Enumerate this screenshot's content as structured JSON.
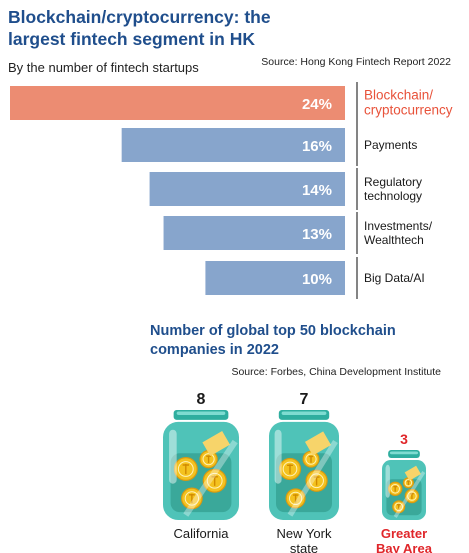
{
  "header": {
    "title_line1": "Blockchain/cryptocurrency: the",
    "title_line2": "largest fintech segment in HK",
    "subtitle": "By the number of fintech startups",
    "source": "Source: Hong Kong Fintech Report 2022"
  },
  "section2": {
    "title_line1": "Number of global top 50 blockchain",
    "title_line2": "companies in 2022",
    "source": "Source: Forbes, China Development Institute"
  },
  "colors": {
    "highlight_bar": "#ec8c72",
    "bar": "#87a5cc",
    "highlight_text": "#e8523a",
    "text": "#1a1a1a",
    "title": "#1f4e8c",
    "red_value": "#e0262a",
    "jar_glass": "#4fc3b8",
    "coin": "#f4c21f"
  },
  "chart_data": [
    {
      "type": "bar",
      "orientation": "horizontal",
      "categories": [
        [
          "Blockchain/",
          "cryptocurrency"
        ],
        [
          "Payments"
        ],
        [
          "Regulatory",
          "technology"
        ],
        [
          "Investments/",
          "Wealthtech"
        ],
        [
          "Big Data/AI"
        ]
      ],
      "values": [
        24,
        16,
        14,
        13,
        10
      ],
      "value_labels": [
        "24%",
        "16%",
        "14%",
        "13%",
        "10%"
      ],
      "highlight_index": 0,
      "xlim": [
        0,
        24
      ]
    },
    {
      "type": "bar",
      "style": "pictograph-jars",
      "categories": [
        [
          "California"
        ],
        [
          "New York",
          "state"
        ],
        [
          "Greater",
          "Bay Area"
        ]
      ],
      "values": [
        8,
        7,
        3
      ],
      "value_labels": [
        "8",
        "7",
        "3"
      ],
      "highlight_index": 2
    }
  ]
}
